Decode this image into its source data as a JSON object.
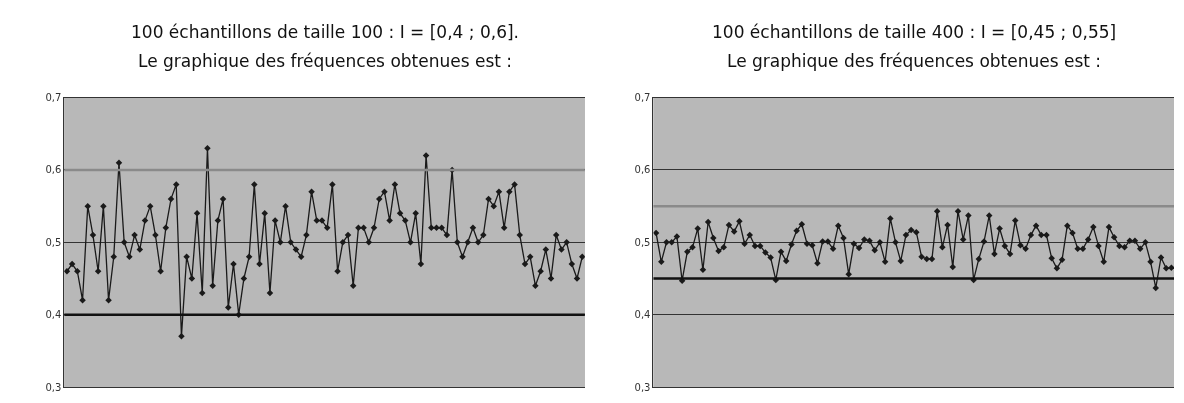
{
  "chart_data": [
    {
      "type": "line",
      "title": "100 échantillons de taille 100 : I = [0,4 ; 0,6].",
      "subtitle": "Le graphique des fréquences obtenues est :",
      "categories": [
        null,
        null,
        null,
        null,
        null,
        null,
        null,
        null,
        null,
        null,
        null,
        null,
        null,
        null,
        null,
        null,
        null,
        null,
        null,
        null,
        null,
        null,
        null,
        null,
        null,
        null,
        null,
        null,
        null,
        null,
        null,
        null,
        null,
        null,
        null,
        null,
        null,
        null,
        null,
        null,
        null,
        null,
        null,
        null,
        null,
        null,
        null,
        null,
        null,
        null,
        null,
        null,
        null,
        null,
        null,
        null,
        null,
        null,
        null,
        null,
        null,
        null,
        null,
        null,
        null,
        null,
        null,
        null,
        null,
        null,
        null,
        null,
        null,
        null,
        null,
        null,
        null,
        null,
        null,
        null,
        null,
        null,
        null,
        null,
        null,
        null,
        null,
        null,
        null,
        null,
        null,
        null,
        null,
        null,
        null,
        null,
        null,
        null,
        null,
        null
      ],
      "series": [
        {
          "color": "#1a1a1a",
          "values": [
            0.46,
            0.47,
            0.46,
            0.42,
            0.55,
            0.51,
            0.46,
            0.55,
            0.42,
            0.48,
            0.61,
            0.5,
            0.48,
            0.51,
            0.49,
            0.53,
            0.55,
            0.51,
            0.46,
            0.52,
            0.56,
            0.58,
            0.37,
            0.48,
            0.45,
            0.54,
            0.43,
            0.63,
            0.44,
            0.53,
            0.56,
            0.41,
            0.47,
            0.4,
            0.45,
            0.48,
            0.58,
            0.47,
            0.54,
            0.43,
            0.53,
            0.5,
            0.55,
            0.5,
            0.49,
            0.48,
            0.51,
            0.57,
            0.53,
            0.53,
            0.52,
            0.58,
            0.46,
            0.5,
            0.51,
            0.44,
            0.52,
            0.52,
            0.5,
            0.52,
            0.56,
            0.57,
            0.53,
            0.58,
            0.54,
            0.53,
            0.5,
            0.54,
            0.47,
            0.62,
            0.52,
            0.52,
            0.52,
            0.51,
            0.6,
            0.5,
            0.48,
            0.5,
            0.52,
            0.5,
            0.51,
            0.56,
            0.55,
            0.57,
            0.52,
            0.57,
            0.58,
            0.51,
            0.47,
            0.48,
            0.44,
            0.46,
            0.49,
            0.45,
            0.51,
            0.49,
            0.5,
            0.47,
            0.45,
            0.48
          ]
        }
      ],
      "ylim": [
        0.3,
        0.7
      ],
      "yticks": [
        {
          "value": 0.3,
          "label": "0,3"
        },
        {
          "value": 0.4,
          "label": "0,4"
        },
        {
          "value": 0.5,
          "label": "0,5"
        },
        {
          "value": 0.6,
          "label": "0,6"
        },
        {
          "value": 0.7,
          "label": "0,7"
        }
      ],
      "ref_lines": [
        {
          "axis": "y",
          "value": 0.4,
          "color": "#111111"
        },
        {
          "axis": "y",
          "value": 0.6,
          "color": "#8a8a8a"
        }
      ],
      "grid": "y",
      "tick_labels": "y",
      "marker": "diamond",
      "line_style": "solid"
    },
    {
      "type": "line",
      "title": "100 échantillons de taille 400 : I = [0,45 ; 0,55]",
      "subtitle": "Le graphique des fréquences obtenues est :",
      "categories": [
        null,
        null,
        null,
        null,
        null,
        null,
        null,
        null,
        null,
        null,
        null,
        null,
        null,
        null,
        null,
        null,
        null,
        null,
        null,
        null,
        null,
        null,
        null,
        null,
        null,
        null,
        null,
        null,
        null,
        null,
        null,
        null,
        null,
        null,
        null,
        null,
        null,
        null,
        null,
        null,
        null,
        null,
        null,
        null,
        null,
        null,
        null,
        null,
        null,
        null,
        null,
        null,
        null,
        null,
        null,
        null,
        null,
        null,
        null,
        null,
        null,
        null,
        null,
        null,
        null,
        null,
        null,
        null,
        null,
        null,
        null,
        null,
        null,
        null,
        null,
        null,
        null,
        null,
        null,
        null,
        null,
        null,
        null,
        null,
        null,
        null,
        null,
        null,
        null,
        null,
        null,
        null,
        null,
        null,
        null,
        null,
        null,
        null,
        null,
        null
      ],
      "series": [
        {
          "color": "#1a1a1a",
          "values": [
            0.513,
            0.473,
            0.5,
            0.5,
            0.508,
            0.447,
            0.487,
            0.493,
            0.519,
            0.462,
            0.528,
            0.506,
            0.488,
            0.493,
            0.524,
            0.515,
            0.529,
            0.498,
            0.51,
            0.495,
            0.495,
            0.486,
            0.479,
            0.448,
            0.487,
            0.474,
            0.497,
            0.516,
            0.525,
            0.498,
            0.496,
            0.471,
            0.501,
            0.501,
            0.491,
            0.523,
            0.506,
            0.456,
            0.498,
            0.492,
            0.504,
            0.502,
            0.489,
            0.5,
            0.473,
            0.533,
            0.5,
            0.474,
            0.51,
            0.517,
            0.514,
            0.48,
            0.477,
            0.477,
            0.543,
            0.493,
            0.524,
            0.466,
            0.543,
            0.504,
            0.537,
            0.448,
            0.477,
            0.501,
            0.537,
            0.484,
            0.519,
            0.495,
            0.484,
            0.53,
            0.496,
            0.491,
            0.51,
            0.523,
            0.51,
            0.51,
            0.478,
            0.464,
            0.476,
            0.523,
            0.513,
            0.491,
            0.491,
            0.504,
            0.521,
            0.495,
            0.473,
            0.521,
            0.507,
            0.495,
            0.493,
            0.502,
            0.502,
            0.491,
            0.5,
            0.473,
            0.437,
            0.479,
            0.464,
            0.465
          ]
        }
      ],
      "ylim": [
        0.3,
        0.7
      ],
      "yticks": [
        {
          "value": 0.3,
          "label": "0,3"
        },
        {
          "value": 0.4,
          "label": "0,4"
        },
        {
          "value": 0.5,
          "label": "0,5"
        },
        {
          "value": 0.6,
          "label": "0,6"
        },
        {
          "value": 0.7,
          "label": "0,7"
        }
      ],
      "ref_lines": [
        {
          "axis": "y",
          "value": 0.45,
          "color": "#111111"
        },
        {
          "axis": "y",
          "value": 0.55,
          "color": "#8a8a8a"
        }
      ],
      "grid": "y",
      "tick_labels": "y",
      "marker": "diamond",
      "line_style": "solid"
    }
  ]
}
